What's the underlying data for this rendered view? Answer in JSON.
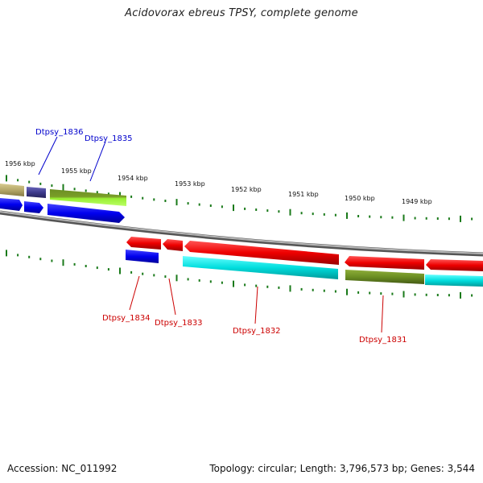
{
  "title": "Acidovorax ebreus TPSY, complete genome",
  "footer": {
    "accession": "Accession: NC_011992",
    "stats": "Topology: circular; Length: 3,796,573 bp; Genes: 3,544"
  },
  "scale_labels": [
    "1956 kbp",
    "1955 kbp",
    "1954 kbp",
    "1953 kbp",
    "1952 kbp",
    "1951 kbp",
    "1950 kbp",
    "1949 kbp"
  ],
  "gene_labels": {
    "top": [
      "Dtpsy_1836",
      "Dtpsy_1835"
    ],
    "bottom": [
      "Dtpsy_1834",
      "Dtpsy_1833",
      "Dtpsy_1832",
      "Dtpsy_1831"
    ]
  },
  "colors": {
    "top_label": "#0000cc",
    "bottom_label": "#cc0000",
    "tick": "#1a7a1a",
    "backbone": "#888888",
    "red_gene": "#ee0000",
    "blue_gene": "#0000ee",
    "cyan_gene": "#00dddd",
    "olive_gene": "#6b8e23",
    "lime_gene": "#99ee33",
    "khaki_gene": "#b5a86a",
    "slate_gene": "#3d3a8c"
  }
}
